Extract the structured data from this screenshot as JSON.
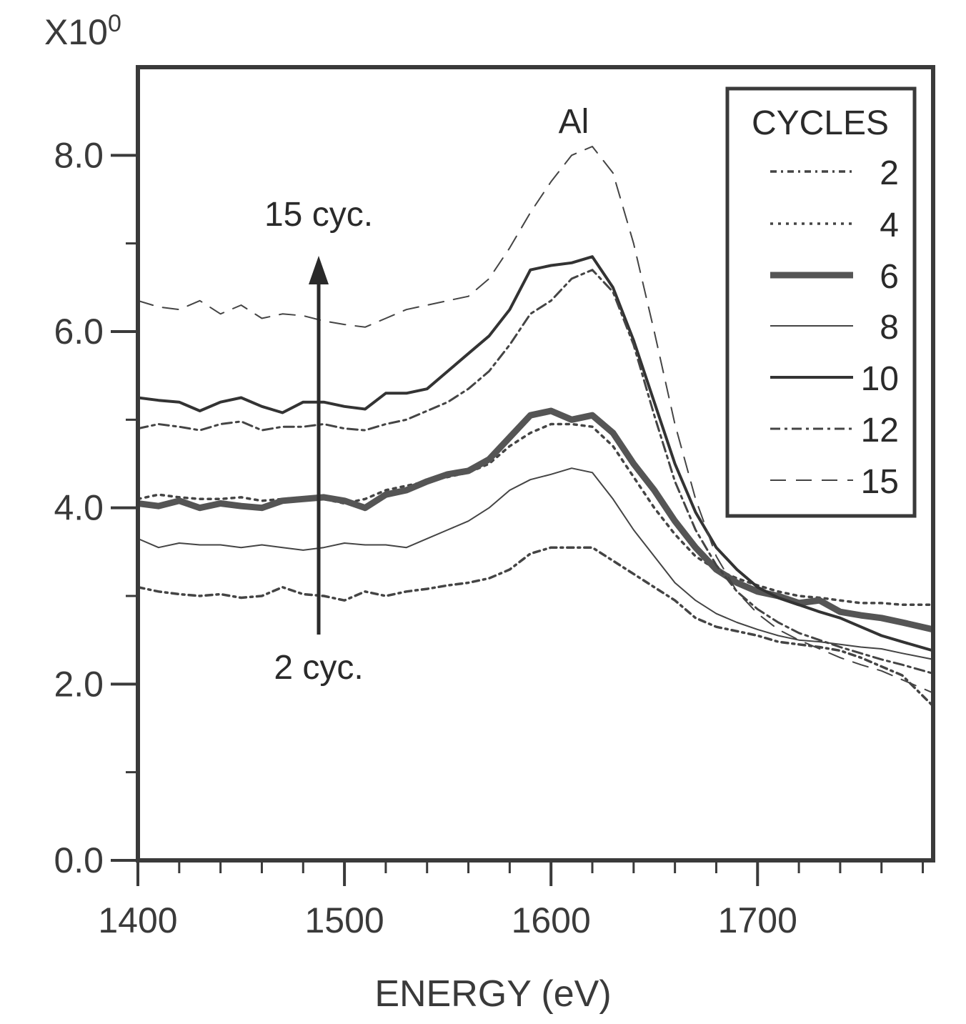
{
  "chart_data": {
    "type": "line",
    "title": "",
    "xlabel": "ENERGY (eV)",
    "ylabel": "",
    "y_multiplier": "X10",
    "y_multiplier_exp": "0",
    "xlim": [
      1400,
      1785
    ],
    "ylim": [
      0,
      9.0
    ],
    "x_ticks": [
      1400,
      1500,
      1600,
      1700
    ],
    "x_tick_labels": [
      "1400",
      "1500",
      "1600",
      "1700"
    ],
    "y_ticks": [
      0,
      2,
      4,
      6,
      8
    ],
    "y_tick_labels": [
      "0.0",
      "2.0",
      "4.0",
      "6.0",
      "8.0"
    ],
    "legend_title": "CYCLES",
    "annotations": {
      "peak_label": "Al",
      "arrow_top_label": "15 cyc.",
      "arrow_bottom_label": "2 cyc."
    },
    "series": [
      {
        "name": "2",
        "style": "dashdot",
        "points": [
          [
            1400,
            3.1
          ],
          [
            1410,
            3.05
          ],
          [
            1420,
            3.02
          ],
          [
            1430,
            3.0
          ],
          [
            1440,
            3.02
          ],
          [
            1450,
            2.98
          ],
          [
            1460,
            3.0
          ],
          [
            1470,
            3.1
          ],
          [
            1480,
            3.02
          ],
          [
            1490,
            3.0
          ],
          [
            1500,
            2.95
          ],
          [
            1510,
            3.05
          ],
          [
            1520,
            3.0
          ],
          [
            1530,
            3.05
          ],
          [
            1540,
            3.08
          ],
          [
            1550,
            3.12
          ],
          [
            1560,
            3.15
          ],
          [
            1570,
            3.2
          ],
          [
            1580,
            3.3
          ],
          [
            1590,
            3.48
          ],
          [
            1600,
            3.55
          ],
          [
            1610,
            3.55
          ],
          [
            1620,
            3.55
          ],
          [
            1630,
            3.4
          ],
          [
            1640,
            3.25
          ],
          [
            1650,
            3.1
          ],
          [
            1660,
            2.95
          ],
          [
            1670,
            2.75
          ],
          [
            1680,
            2.65
          ],
          [
            1690,
            2.6
          ],
          [
            1700,
            2.55
          ],
          [
            1710,
            2.48
          ],
          [
            1720,
            2.45
          ],
          [
            1730,
            2.42
          ],
          [
            1740,
            2.38
          ],
          [
            1750,
            2.3
          ],
          [
            1760,
            2.2
          ],
          [
            1770,
            2.1
          ],
          [
            1785,
            1.75
          ]
        ]
      },
      {
        "name": "4",
        "style": "dotted",
        "points": [
          [
            1400,
            4.1
          ],
          [
            1410,
            4.15
          ],
          [
            1420,
            4.12
          ],
          [
            1430,
            4.1
          ],
          [
            1440,
            4.1
          ],
          [
            1450,
            4.12
          ],
          [
            1460,
            4.08
          ],
          [
            1470,
            4.1
          ],
          [
            1480,
            4.12
          ],
          [
            1490,
            4.1
          ],
          [
            1500,
            4.05
          ],
          [
            1510,
            4.1
          ],
          [
            1520,
            4.2
          ],
          [
            1530,
            4.25
          ],
          [
            1540,
            4.3
          ],
          [
            1550,
            4.35
          ],
          [
            1560,
            4.4
          ],
          [
            1570,
            4.5
          ],
          [
            1580,
            4.7
          ],
          [
            1590,
            4.85
          ],
          [
            1600,
            4.95
          ],
          [
            1610,
            4.95
          ],
          [
            1620,
            4.92
          ],
          [
            1630,
            4.7
          ],
          [
            1640,
            4.35
          ],
          [
            1650,
            4.0
          ],
          [
            1660,
            3.7
          ],
          [
            1670,
            3.45
          ],
          [
            1680,
            3.3
          ],
          [
            1690,
            3.2
          ],
          [
            1700,
            3.12
          ],
          [
            1710,
            3.05
          ],
          [
            1720,
            3.0
          ],
          [
            1730,
            2.98
          ],
          [
            1740,
            2.95
          ],
          [
            1750,
            2.92
          ],
          [
            1760,
            2.92
          ],
          [
            1770,
            2.9
          ],
          [
            1785,
            2.9
          ]
        ]
      },
      {
        "name": "6",
        "style": "thick",
        "points": [
          [
            1400,
            4.05
          ],
          [
            1410,
            4.02
          ],
          [
            1420,
            4.08
          ],
          [
            1430,
            4.0
          ],
          [
            1440,
            4.05
          ],
          [
            1450,
            4.02
          ],
          [
            1460,
            4.0
          ],
          [
            1470,
            4.08
          ],
          [
            1480,
            4.1
          ],
          [
            1490,
            4.12
          ],
          [
            1500,
            4.08
          ],
          [
            1510,
            4.0
          ],
          [
            1520,
            4.15
          ],
          [
            1530,
            4.2
          ],
          [
            1540,
            4.3
          ],
          [
            1550,
            4.38
          ],
          [
            1560,
            4.42
          ],
          [
            1570,
            4.55
          ],
          [
            1580,
            4.8
          ],
          [
            1590,
            5.05
          ],
          [
            1600,
            5.1
          ],
          [
            1610,
            5.0
          ],
          [
            1620,
            5.05
          ],
          [
            1630,
            4.85
          ],
          [
            1640,
            4.5
          ],
          [
            1650,
            4.2
          ],
          [
            1660,
            3.85
          ],
          [
            1670,
            3.55
          ],
          [
            1680,
            3.3
          ],
          [
            1690,
            3.15
          ],
          [
            1700,
            3.05
          ],
          [
            1710,
            3.0
          ],
          [
            1720,
            2.92
          ],
          [
            1730,
            2.95
          ],
          [
            1740,
            2.82
          ],
          [
            1750,
            2.78
          ],
          [
            1760,
            2.75
          ],
          [
            1770,
            2.7
          ],
          [
            1785,
            2.62
          ]
        ]
      },
      {
        "name": "8",
        "style": "thin",
        "points": [
          [
            1400,
            3.65
          ],
          [
            1410,
            3.55
          ],
          [
            1420,
            3.6
          ],
          [
            1430,
            3.58
          ],
          [
            1440,
            3.58
          ],
          [
            1450,
            3.55
          ],
          [
            1460,
            3.58
          ],
          [
            1470,
            3.55
          ],
          [
            1480,
            3.52
          ],
          [
            1490,
            3.55
          ],
          [
            1500,
            3.6
          ],
          [
            1510,
            3.58
          ],
          [
            1520,
            3.58
          ],
          [
            1530,
            3.55
          ],
          [
            1540,
            3.65
          ],
          [
            1550,
            3.75
          ],
          [
            1560,
            3.85
          ],
          [
            1570,
            4.0
          ],
          [
            1580,
            4.2
          ],
          [
            1590,
            4.32
          ],
          [
            1600,
            4.38
          ],
          [
            1610,
            4.45
          ],
          [
            1620,
            4.4
          ],
          [
            1630,
            4.1
          ],
          [
            1640,
            3.75
          ],
          [
            1650,
            3.45
          ],
          [
            1660,
            3.15
          ],
          [
            1670,
            2.95
          ],
          [
            1680,
            2.8
          ],
          [
            1690,
            2.7
          ],
          [
            1700,
            2.62
          ],
          [
            1710,
            2.55
          ],
          [
            1720,
            2.5
          ],
          [
            1730,
            2.48
          ],
          [
            1740,
            2.45
          ],
          [
            1750,
            2.42
          ],
          [
            1760,
            2.4
          ],
          [
            1770,
            2.35
          ],
          [
            1785,
            2.28
          ]
        ]
      },
      {
        "name": "10",
        "style": "solid",
        "points": [
          [
            1400,
            5.25
          ],
          [
            1410,
            5.22
          ],
          [
            1420,
            5.2
          ],
          [
            1430,
            5.1
          ],
          [
            1440,
            5.2
          ],
          [
            1450,
            5.25
          ],
          [
            1460,
            5.15
          ],
          [
            1470,
            5.08
          ],
          [
            1480,
            5.2
          ],
          [
            1490,
            5.2
          ],
          [
            1500,
            5.15
          ],
          [
            1510,
            5.12
          ],
          [
            1520,
            5.3
          ],
          [
            1530,
            5.3
          ],
          [
            1540,
            5.35
          ],
          [
            1550,
            5.55
          ],
          [
            1560,
            5.75
          ],
          [
            1570,
            5.95
          ],
          [
            1580,
            6.25
          ],
          [
            1590,
            6.7
          ],
          [
            1600,
            6.75
          ],
          [
            1610,
            6.78
          ],
          [
            1620,
            6.85
          ],
          [
            1630,
            6.5
          ],
          [
            1640,
            5.9
          ],
          [
            1650,
            5.2
          ],
          [
            1660,
            4.5
          ],
          [
            1670,
            3.95
          ],
          [
            1680,
            3.55
          ],
          [
            1690,
            3.3
          ],
          [
            1700,
            3.1
          ],
          [
            1710,
            2.98
          ],
          [
            1720,
            2.9
          ],
          [
            1730,
            2.82
          ],
          [
            1740,
            2.75
          ],
          [
            1750,
            2.65
          ],
          [
            1760,
            2.55
          ],
          [
            1770,
            2.48
          ],
          [
            1785,
            2.38
          ]
        ]
      },
      {
        "name": "12",
        "style": "dashdot2",
        "points": [
          [
            1400,
            4.9
          ],
          [
            1410,
            4.95
          ],
          [
            1420,
            4.92
          ],
          [
            1430,
            4.88
          ],
          [
            1440,
            4.95
          ],
          [
            1450,
            4.98
          ],
          [
            1460,
            4.88
          ],
          [
            1470,
            4.92
          ],
          [
            1480,
            4.92
          ],
          [
            1490,
            4.95
          ],
          [
            1500,
            4.9
          ],
          [
            1510,
            4.88
          ],
          [
            1520,
            4.95
          ],
          [
            1530,
            5.0
          ],
          [
            1540,
            5.1
          ],
          [
            1550,
            5.2
          ],
          [
            1560,
            5.35
          ],
          [
            1570,
            5.55
          ],
          [
            1580,
            5.85
          ],
          [
            1590,
            6.2
          ],
          [
            1600,
            6.35
          ],
          [
            1610,
            6.6
          ],
          [
            1620,
            6.7
          ],
          [
            1630,
            6.45
          ],
          [
            1640,
            5.85
          ],
          [
            1650,
            5.05
          ],
          [
            1660,
            4.3
          ],
          [
            1670,
            3.75
          ],
          [
            1680,
            3.35
          ],
          [
            1690,
            3.05
          ],
          [
            1700,
            2.85
          ],
          [
            1710,
            2.7
          ],
          [
            1720,
            2.58
          ],
          [
            1730,
            2.5
          ],
          [
            1740,
            2.42
          ],
          [
            1750,
            2.35
          ],
          [
            1760,
            2.28
          ],
          [
            1770,
            2.22
          ],
          [
            1785,
            2.12
          ]
        ]
      },
      {
        "name": "15",
        "style": "dashed",
        "points": [
          [
            1400,
            6.35
          ],
          [
            1410,
            6.28
          ],
          [
            1420,
            6.25
          ],
          [
            1430,
            6.35
          ],
          [
            1440,
            6.2
          ],
          [
            1450,
            6.3
          ],
          [
            1460,
            6.15
          ],
          [
            1470,
            6.2
          ],
          [
            1480,
            6.18
          ],
          [
            1490,
            6.12
          ],
          [
            1500,
            6.08
          ],
          [
            1510,
            6.05
          ],
          [
            1520,
            6.15
          ],
          [
            1530,
            6.25
          ],
          [
            1540,
            6.3
          ],
          [
            1550,
            6.35
          ],
          [
            1560,
            6.4
          ],
          [
            1570,
            6.6
          ],
          [
            1580,
            6.95
          ],
          [
            1590,
            7.35
          ],
          [
            1600,
            7.7
          ],
          [
            1610,
            8.0
          ],
          [
            1620,
            8.1
          ],
          [
            1630,
            7.8
          ],
          [
            1640,
            7.0
          ],
          [
            1650,
            6.0
          ],
          [
            1660,
            4.95
          ],
          [
            1670,
            4.1
          ],
          [
            1680,
            3.45
          ],
          [
            1690,
            3.05
          ],
          [
            1700,
            2.8
          ],
          [
            1710,
            2.62
          ],
          [
            1720,
            2.5
          ],
          [
            1730,
            2.4
          ],
          [
            1740,
            2.3
          ],
          [
            1750,
            2.22
          ],
          [
            1760,
            2.15
          ],
          [
            1770,
            2.05
          ],
          [
            1785,
            1.9
          ]
        ]
      }
    ]
  }
}
